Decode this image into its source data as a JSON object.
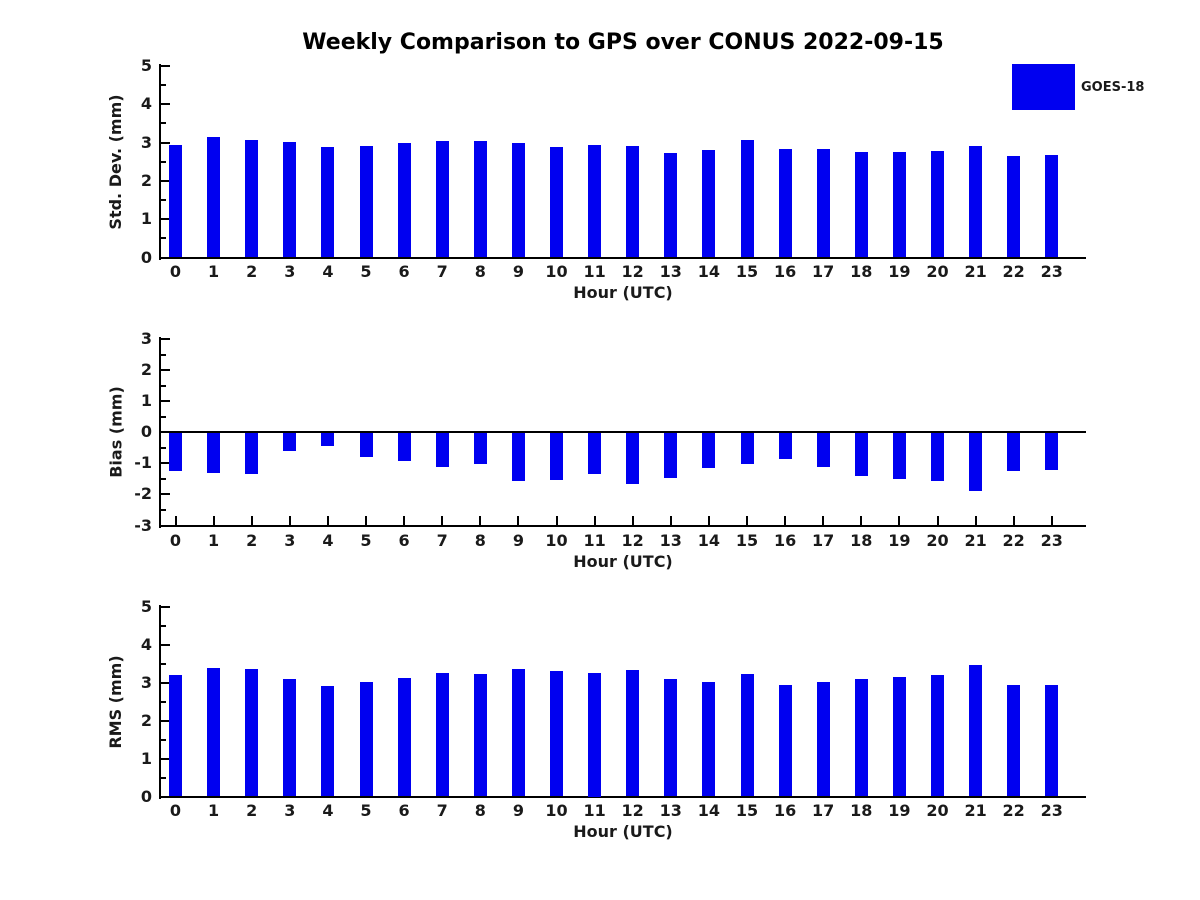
{
  "figure": {
    "title": "Weekly Comparison to GPS over CONUS 2022-09-15",
    "background_color": "#ffffff",
    "text_color": "#1a1a1a",
    "axis_color": "#000000"
  },
  "legend": {
    "label": "GOES-18",
    "swatch_color": "#0000f0",
    "position": "upper right"
  },
  "chart_data": [
    {
      "type": "bar",
      "panel": "std-dev",
      "ylabel": "Std. Dev. (mm)",
      "xlabel": "Hour (UTC)",
      "series_name": "GOES-18",
      "bar_color": "#0000f0",
      "grid": false,
      "ylim": [
        0,
        5
      ],
      "yticks": [
        0,
        1,
        2,
        3,
        4,
        5
      ],
      "minor_tick_step": 0.5,
      "categories": [
        0,
        1,
        2,
        3,
        4,
        5,
        6,
        7,
        8,
        9,
        10,
        11,
        12,
        13,
        14,
        15,
        16,
        17,
        18,
        19,
        20,
        21,
        22,
        23
      ],
      "values": [
        2.95,
        3.14,
        3.07,
        3.02,
        2.89,
        2.91,
        2.98,
        3.04,
        3.05,
        2.99,
        2.89,
        2.93,
        2.91,
        2.72,
        2.8,
        3.07,
        2.84,
        2.84,
        2.75,
        2.76,
        2.78,
        2.92,
        2.65,
        2.67
      ]
    },
    {
      "type": "bar",
      "panel": "bias",
      "ylabel": "Bias (mm)",
      "xlabel": "Hour (UTC)",
      "series_name": "GOES-18",
      "bar_color": "#0000f0",
      "grid": false,
      "ylim": [
        -3,
        3
      ],
      "yticks": [
        -3,
        -2,
        -1,
        0,
        1,
        2,
        3
      ],
      "minor_tick_step": 0.5,
      "zero_baseline": true,
      "categories": [
        0,
        1,
        2,
        3,
        4,
        5,
        6,
        7,
        8,
        9,
        10,
        11,
        12,
        13,
        14,
        15,
        16,
        17,
        18,
        19,
        20,
        21,
        22,
        23
      ],
      "values": [
        -1.26,
        -1.33,
        -1.38,
        -0.62,
        -0.48,
        -0.82,
        -0.95,
        -1.13,
        -1.05,
        -1.6,
        -1.55,
        -1.38,
        -1.7,
        -1.48,
        -1.17,
        -1.05,
        -0.87,
        -1.14,
        -1.43,
        -1.54,
        -1.6,
        -1.93,
        -1.27,
        -1.24
      ]
    },
    {
      "type": "bar",
      "panel": "rms",
      "ylabel": "RMS (mm)",
      "xlabel": "Hour (UTC)",
      "series_name": "GOES-18",
      "bar_color": "#0000f0",
      "grid": false,
      "ylim": [
        0,
        5
      ],
      "yticks": [
        0,
        1,
        2,
        3,
        4,
        5
      ],
      "minor_tick_step": 0.5,
      "categories": [
        0,
        1,
        2,
        3,
        4,
        5,
        6,
        7,
        8,
        9,
        10,
        11,
        12,
        13,
        14,
        15,
        16,
        17,
        18,
        19,
        20,
        21,
        22,
        23
      ],
      "values": [
        3.21,
        3.39,
        3.36,
        3.08,
        2.92,
        3.02,
        3.12,
        3.26,
        3.23,
        3.36,
        3.29,
        3.25,
        3.34,
        3.09,
        3.02,
        3.22,
        2.93,
        3.02,
        3.09,
        3.14,
        3.19,
        3.47,
        2.93,
        2.93
      ]
    }
  ]
}
